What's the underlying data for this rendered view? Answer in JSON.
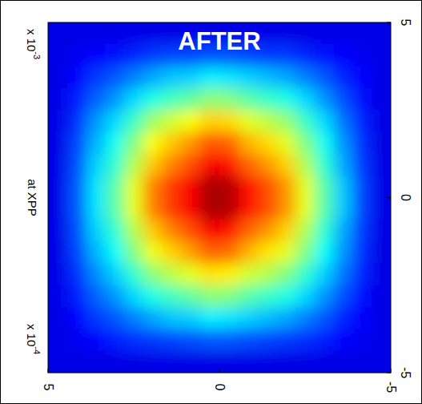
{
  "chart_data": {
    "type": "heatmap",
    "title": "AFTER",
    "x_label": "at XPP",
    "x_multiplier": {
      "base": "x 10",
      "exponent": "-4"
    },
    "y_multiplier": {
      "base": "x 10",
      "exponent": "-3"
    },
    "xlim": [
      5,
      -5
    ],
    "xticks": [
      5,
      0,
      -5
    ],
    "ylim": [
      -5,
      5
    ],
    "yticks": [
      -5,
      0,
      5
    ],
    "zlim": [
      0,
      1
    ],
    "cells": [
      [
        0.1,
        0.1,
        0.1,
        0.1,
        0.1,
        0.1,
        0.1,
        0.1,
        0.1,
        0.1,
        0.1,
        0.1,
        0.1,
        0.1,
        0.1,
        0.1,
        0.1,
        0.1
      ],
      [
        0.1,
        0.11,
        0.13,
        0.14,
        0.16,
        0.18,
        0.19,
        0.19,
        0.2,
        0.2,
        0.19,
        0.18,
        0.18,
        0.16,
        0.14,
        0.13,
        0.11,
        0.1
      ],
      [
        0.1,
        0.13,
        0.18,
        0.21,
        0.25,
        0.29,
        0.32,
        0.33,
        0.36,
        0.35,
        0.33,
        0.31,
        0.29,
        0.25,
        0.21,
        0.16,
        0.13,
        0.1
      ],
      [
        0.1,
        0.15,
        0.22,
        0.27,
        0.34,
        0.4,
        0.44,
        0.47,
        0.51,
        0.5,
        0.46,
        0.43,
        0.4,
        0.34,
        0.27,
        0.2,
        0.14,
        0.1
      ],
      [
        0.1,
        0.17,
        0.27,
        0.34,
        0.43,
        0.53,
        0.58,
        0.62,
        0.67,
        0.66,
        0.6,
        0.56,
        0.52,
        0.43,
        0.34,
        0.24,
        0.16,
        0.1
      ],
      [
        0.1,
        0.19,
        0.3,
        0.39,
        0.5,
        0.62,
        0.68,
        0.73,
        0.79,
        0.78,
        0.7,
        0.66,
        0.6,
        0.5,
        0.39,
        0.27,
        0.17,
        0.1
      ],
      [
        0.1,
        0.2,
        0.33,
        0.42,
        0.55,
        0.68,
        0.75,
        0.8,
        0.88,
        0.86,
        0.78,
        0.73,
        0.67,
        0.55,
        0.42,
        0.29,
        0.18,
        0.1
      ],
      [
        0.1,
        0.21,
        0.35,
        0.46,
        0.6,
        0.75,
        0.82,
        0.88,
        0.96,
        0.95,
        0.86,
        0.8,
        0.73,
        0.6,
        0.46,
        0.32,
        0.19,
        0.1
      ],
      [
        0.1,
        0.21,
        0.35,
        0.46,
        0.6,
        0.75,
        0.82,
        0.88,
        0.96,
        0.95,
        0.86,
        0.8,
        0.73,
        0.6,
        0.46,
        0.32,
        0.19,
        0.1
      ],
      [
        0.1,
        0.2,
        0.33,
        0.42,
        0.55,
        0.68,
        0.75,
        0.8,
        0.88,
        0.86,
        0.78,
        0.73,
        0.67,
        0.55,
        0.42,
        0.29,
        0.18,
        0.1
      ],
      [
        0.1,
        0.19,
        0.3,
        0.38,
        0.5,
        0.61,
        0.67,
        0.72,
        0.78,
        0.77,
        0.7,
        0.65,
        0.6,
        0.5,
        0.38,
        0.27,
        0.17,
        0.1
      ],
      [
        0.1,
        0.17,
        0.26,
        0.33,
        0.42,
        0.51,
        0.56,
        0.6,
        0.65,
        0.64,
        0.58,
        0.55,
        0.5,
        0.42,
        0.33,
        0.24,
        0.16,
        0.1
      ],
      [
        0.1,
        0.15,
        0.22,
        0.27,
        0.34,
        0.4,
        0.44,
        0.47,
        0.51,
        0.5,
        0.46,
        0.43,
        0.4,
        0.34,
        0.27,
        0.2,
        0.14,
        0.1
      ],
      [
        0.1,
        0.13,
        0.18,
        0.21,
        0.25,
        0.29,
        0.32,
        0.33,
        0.36,
        0.35,
        0.33,
        0.31,
        0.29,
        0.25,
        0.21,
        0.16,
        0.13,
        0.1
      ],
      [
        0.1,
        0.11,
        0.13,
        0.15,
        0.17,
        0.18,
        0.19,
        0.2,
        0.21,
        0.21,
        0.2,
        0.19,
        0.18,
        0.17,
        0.15,
        0.13,
        0.11,
        0.1
      ],
      [
        0.1,
        0.1,
        0.1,
        0.1,
        0.1,
        0.1,
        0.1,
        0.1,
        0.1,
        0.1,
        0.1,
        0.1,
        0.1,
        0.1,
        0.1,
        0.1,
        0.1,
        0.1
      ]
    ]
  }
}
